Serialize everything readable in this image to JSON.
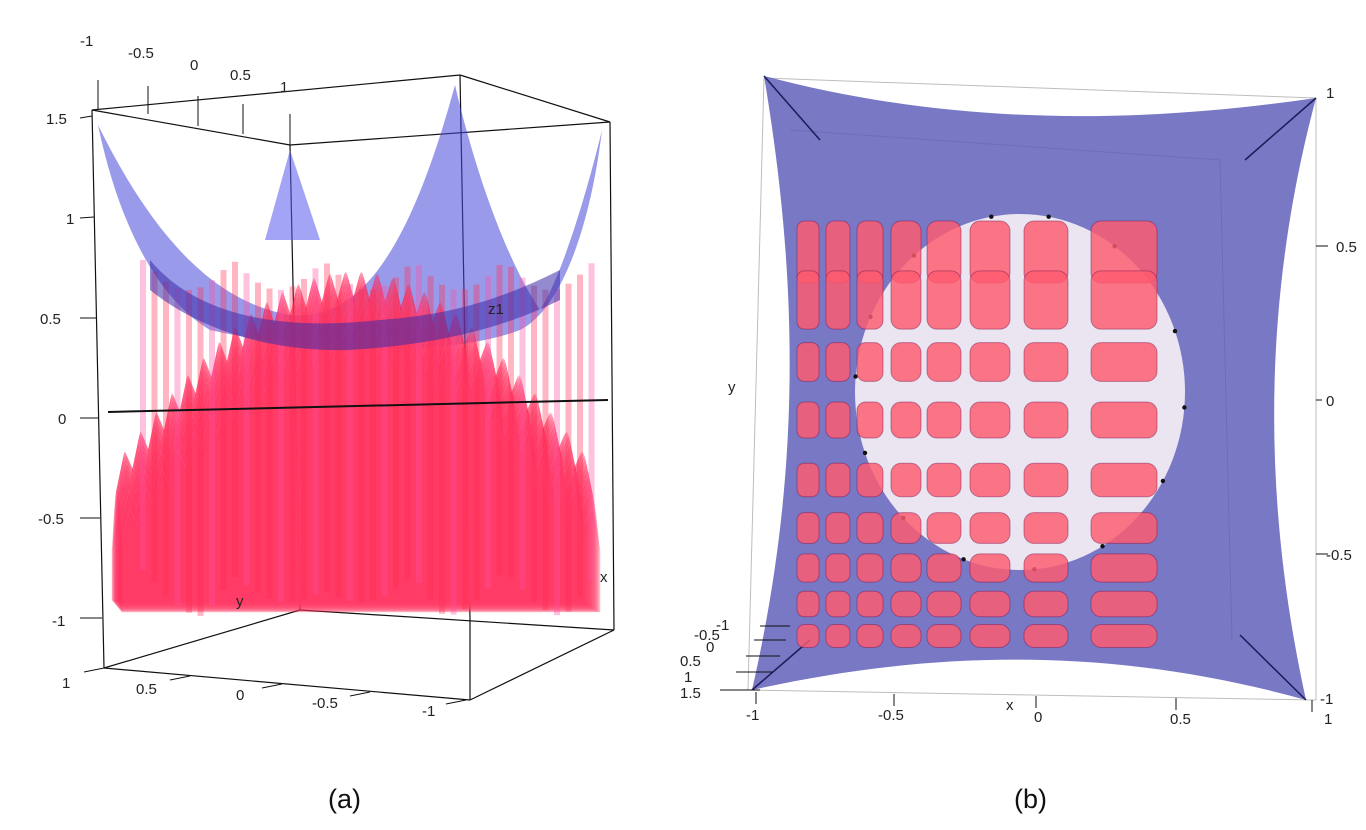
{
  "panel_a": {
    "caption": "(a)",
    "z_ticks": [
      "1.5",
      "1",
      "0.5",
      "0",
      "-0.5",
      "-1"
    ],
    "top_x_ticks": [
      "-1",
      "-0.5",
      "0",
      "0.5",
      "1"
    ],
    "bottom_y_ticks": [
      "1",
      "0.5",
      "0",
      "-0.5",
      "-1"
    ],
    "axis_labels": {
      "z": "z1",
      "y": "y",
      "x": "x"
    }
  },
  "panel_b": {
    "caption": "(b)",
    "right_ticks": [
      "1",
      "0.5",
      "0",
      "-0.5",
      "-1"
    ],
    "bottom_ticks": [
      "-1",
      "-0.5",
      "0",
      "0.5",
      "1"
    ],
    "left_stack_ticks": [
      "-1",
      "-0.5",
      "0",
      "0.5",
      "1",
      "1.5"
    ],
    "axis_labels": {
      "y": "y",
      "x": "x"
    }
  },
  "colors": {
    "surface_blue": "#5a5ab8",
    "surface_red": "#ff2a4a",
    "surface_pink": "#ff4d8a",
    "disk": "#f3eef3",
    "box_line": "#111111"
  }
}
